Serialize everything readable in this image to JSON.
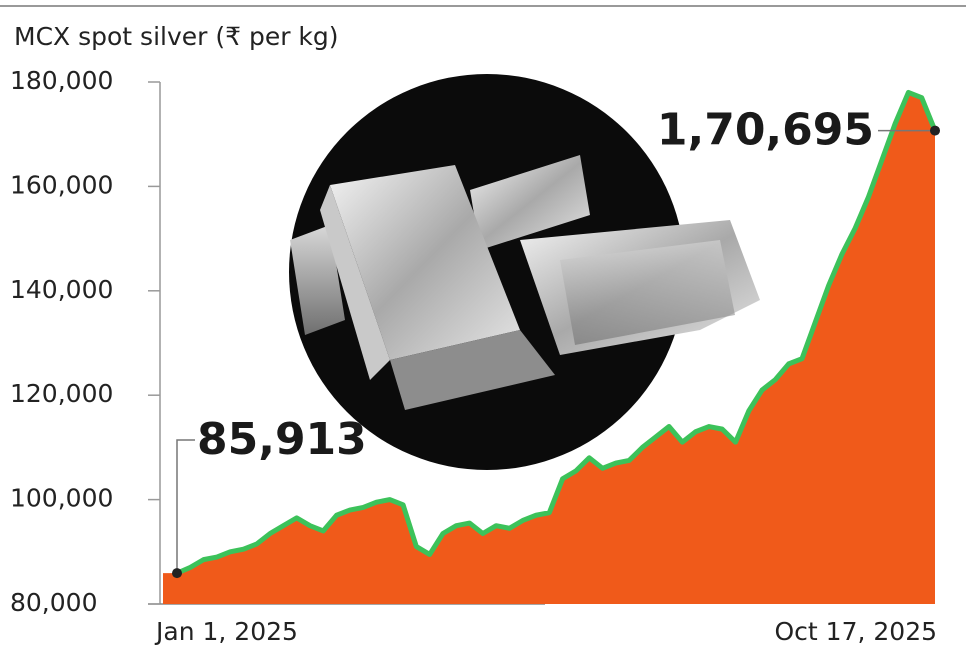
{
  "chart_data": {
    "type": "area",
    "title": "MCX spot silver (₹ per kg)",
    "categories": [
      "Jan 1, 2025",
      null,
      null,
      null,
      null,
      null,
      null,
      null,
      null,
      null,
      null,
      null,
      null,
      null,
      null,
      null,
      null,
      null,
      null,
      null,
      null,
      null,
      null,
      null,
      null,
      null,
      null,
      null,
      null,
      null,
      null,
      null,
      null,
      null,
      null,
      null,
      null,
      null,
      null,
      null,
      null,
      null,
      null,
      null,
      null,
      null,
      null,
      null,
      null,
      null,
      null,
      null,
      null,
      null,
      null,
      null,
      null,
      "Oct 17, 2025"
    ],
    "series": [
      {
        "line_color": "#3cc25a",
        "color": "#f05a1a",
        "values": [
          85913,
          87000,
          88500,
          89000,
          90000,
          90500,
          91500,
          93500,
          95000,
          96500,
          95000,
          94000,
          97000,
          98000,
          98500,
          99500,
          100000,
          99000,
          91000,
          89500,
          93500,
          95000,
          95500,
          93500,
          95000,
          94500,
          96000,
          97000,
          97500,
          104000,
          105500,
          108000,
          106000,
          107000,
          107500,
          110000,
          112000,
          114000,
          111000,
          113000,
          114000,
          113500,
          111000,
          117000,
          121000,
          123000,
          126000,
          127000,
          134000,
          141000,
          147000,
          152000,
          158000,
          165000,
          172000,
          178000,
          177000,
          170695
        ],
        "value_labels": [
          "85,913",
          null,
          null,
          null,
          null,
          null,
          null,
          null,
          null,
          null,
          null,
          null,
          null,
          null,
          null,
          null,
          null,
          null,
          null,
          null,
          null,
          null,
          null,
          null,
          null,
          null,
          null,
          null,
          null,
          null,
          null,
          null,
          null,
          null,
          null,
          null,
          null,
          null,
          null,
          null,
          null,
          null,
          null,
          null,
          null,
          null,
          null,
          null,
          null,
          null,
          null,
          null,
          null,
          null,
          null,
          null,
          null,
          "1,70,695"
        ]
      }
    ],
    "ylim": [
      80000,
      180000
    ],
    "yticks": [
      {
        "value": 80000,
        "label": "80,000"
      },
      {
        "value": 100000,
        "label": "100,000"
      },
      {
        "value": 120000,
        "label": "120,000"
      },
      {
        "value": 140000,
        "label": "140,000"
      },
      {
        "value": 160000,
        "label": "160,000"
      },
      {
        "value": 180000,
        "label": "180,000"
      }
    ]
  }
}
